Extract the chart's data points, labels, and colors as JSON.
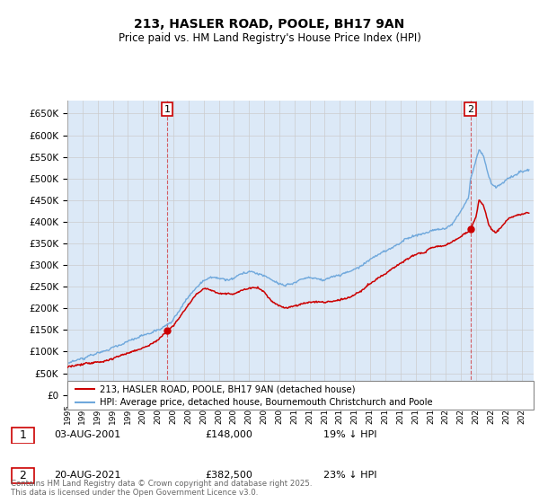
{
  "title_line1": "213, HASLER ROAD, POOLE, BH17 9AN",
  "title_line2": "Price paid vs. HM Land Registry's House Price Index (HPI)",
  "legend_line1": "213, HASLER ROAD, POOLE, BH17 9AN (detached house)",
  "legend_line2": "HPI: Average price, detached house, Bournemouth Christchurch and Poole",
  "sale1_date": "03-AUG-2001",
  "sale1_price": "£148,000",
  "sale1_hpi": "19% ↓ HPI",
  "sale2_date": "20-AUG-2021",
  "sale2_price": "£382,500",
  "sale2_hpi": "23% ↓ HPI",
  "footer": "Contains HM Land Registry data © Crown copyright and database right 2025.\nThis data is licensed under the Open Government Licence v3.0.",
  "hpi_color": "#6fa8dc",
  "price_color": "#cc0000",
  "grid_color": "#cccccc",
  "bg_fill_color": "#dce9f7",
  "ylim_min": 0,
  "ylim_max": 680000,
  "sale1_year": 2001.59,
  "sale1_value": 148000,
  "sale2_year": 2021.63,
  "sale2_value": 382500
}
